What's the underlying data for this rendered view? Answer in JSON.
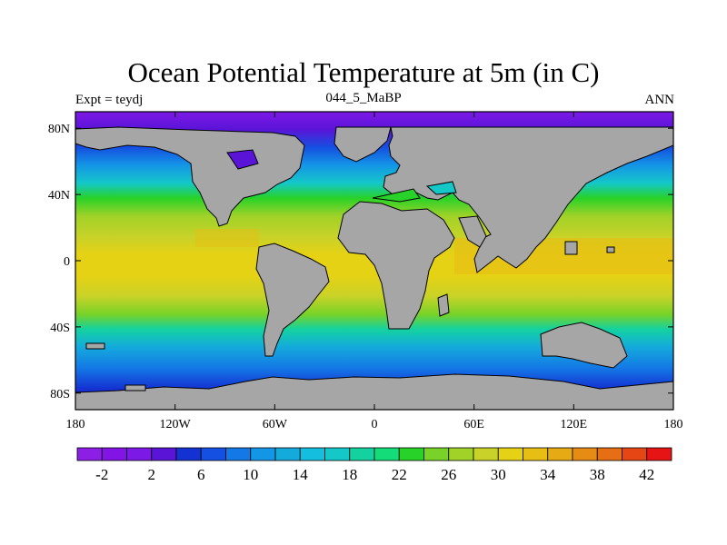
{
  "header": {
    "title": "Ocean Potential Temperature at 5m (in C)",
    "left": "Expt = teydj",
    "center": "044_5_MaBP",
    "right": "ANN"
  },
  "map": {
    "lon_ticks": [
      "180",
      "120W",
      "60W",
      "0",
      "60E",
      "120E",
      "180"
    ],
    "lat_ticks": [
      "80N",
      "40N",
      "0",
      "40S",
      "80S"
    ],
    "land_color": "#a6a6a6"
  },
  "colorbar": {
    "labels": [
      "-2",
      "2",
      "6",
      "10",
      "14",
      "18",
      "22",
      "26",
      "30",
      "34",
      "38",
      "42"
    ],
    "colors": [
      "#8c1ee6",
      "#8214e6",
      "#7d19e6",
      "#5a14d7",
      "#1432d2",
      "#1450e1",
      "#1478e6",
      "#1496e6",
      "#14aadc",
      "#14bede",
      "#14c8c8",
      "#14d2a0",
      "#14dc78",
      "#28d228",
      "#78d228",
      "#a0d228",
      "#c8d228",
      "#e6d214",
      "#e6be14",
      "#e6aa14",
      "#e68c14",
      "#e66e14",
      "#e64614",
      "#e61414"
    ]
  }
}
